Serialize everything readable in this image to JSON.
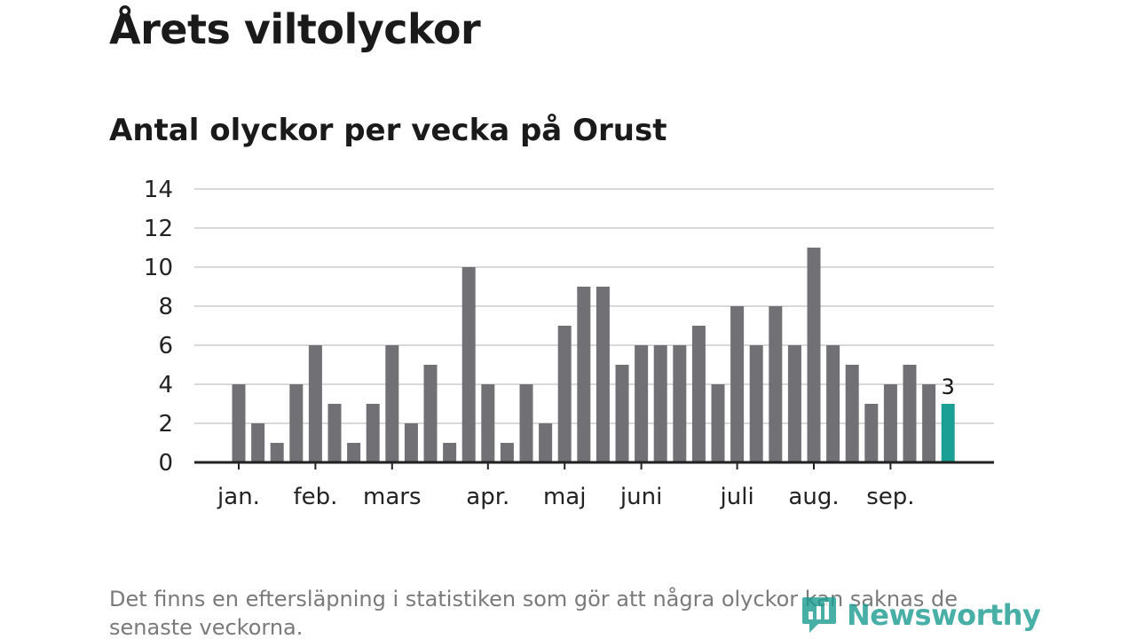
{
  "header": {
    "title": "Årets viltolyckor",
    "subtitle": "Antal olyckor per vecka på Orust"
  },
  "chart_data": {
    "type": "bar",
    "title": "Årets viltolyckor",
    "subtitle": "Antal olyckor per vecka på Orust",
    "xlabel": "",
    "ylabel": "",
    "ylim": [
      0,
      14
    ],
    "yticks": [
      "0",
      "2",
      "4",
      "6",
      "8",
      "10",
      "12",
      "14"
    ],
    "grid": true,
    "values": [
      4,
      2,
      1,
      4,
      6,
      3,
      1,
      3,
      6,
      2,
      5,
      1,
      10,
      4,
      1,
      4,
      2,
      7,
      9,
      9,
      5,
      6,
      6,
      6,
      7,
      4,
      8,
      6,
      8,
      6,
      11,
      6,
      5,
      3,
      4,
      5,
      4,
      3
    ],
    "month_labels": [
      {
        "label": "jan.",
        "week_index": 0
      },
      {
        "label": "feb.",
        "week_index": 4
      },
      {
        "label": "mars",
        "week_index": 8
      },
      {
        "label": "apr.",
        "week_index": 13
      },
      {
        "label": "maj",
        "week_index": 17
      },
      {
        "label": "juni",
        "week_index": 21
      },
      {
        "label": "juli",
        "week_index": 26
      },
      {
        "label": "aug.",
        "week_index": 30
      },
      {
        "label": "sep.",
        "week_index": 34
      }
    ],
    "highlight_last": true,
    "last_value_label": "3",
    "colors": {
      "bar": "#717074",
      "highlight": "#1b9e93",
      "grid": "#d9d9d9",
      "axis": "#222222"
    }
  },
  "footer": {
    "note": "Det finns en eftersläpning i statistiken som gör att några olyckor kan saknas de senaste veckorna.",
    "brand": "Newsworthy",
    "brand_icon": "newsworthy-logo-icon"
  }
}
